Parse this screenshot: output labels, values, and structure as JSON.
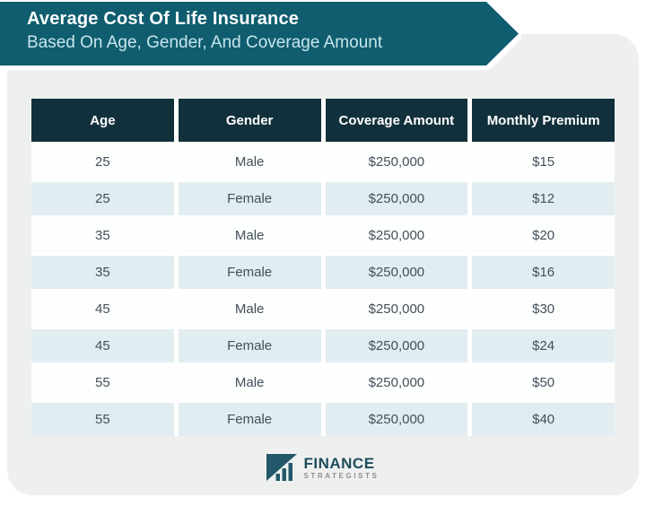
{
  "banner": {
    "title": "Average Cost Of Life Insurance",
    "subtitle": "Based On Age, Gender, And Coverage Amount"
  },
  "chart_data": {
    "type": "table",
    "title": "Average Cost Of Life Insurance",
    "subtitle": "Based On Age, Gender, And Coverage Amount",
    "columns": [
      "Age",
      "Gender",
      "Coverage Amount",
      "Monthly Premium"
    ],
    "rows": [
      [
        "25",
        "Male",
        "$250,000",
        "$15"
      ],
      [
        "25",
        "Female",
        "$250,000",
        "$12"
      ],
      [
        "35",
        "Male",
        "$250,000",
        "$20"
      ],
      [
        "35",
        "Female",
        "$250,000",
        "$16"
      ],
      [
        "45",
        "Male",
        "$250,000",
        "$30"
      ],
      [
        "45",
        "Female",
        "$250,000",
        "$24"
      ],
      [
        "55",
        "Male",
        "$250,000",
        "$50"
      ],
      [
        "55",
        "Female",
        "$250,000",
        "$40"
      ]
    ]
  },
  "footer": {
    "logo_primary": "FINANCE",
    "logo_secondary": "STRATEGISTS"
  },
  "colors": {
    "banner_teal": "#0f5d6f",
    "header_dark": "#12303b",
    "card_bg": "#eef0f0",
    "row_plain": "#fdfefe",
    "row_alt": "#e2edf1",
    "cell_text": "#41505a",
    "subtitle_color": "#c9e6ec",
    "logo_teal": "#1d4c5c",
    "logo_gray": "#8f8e8c"
  }
}
